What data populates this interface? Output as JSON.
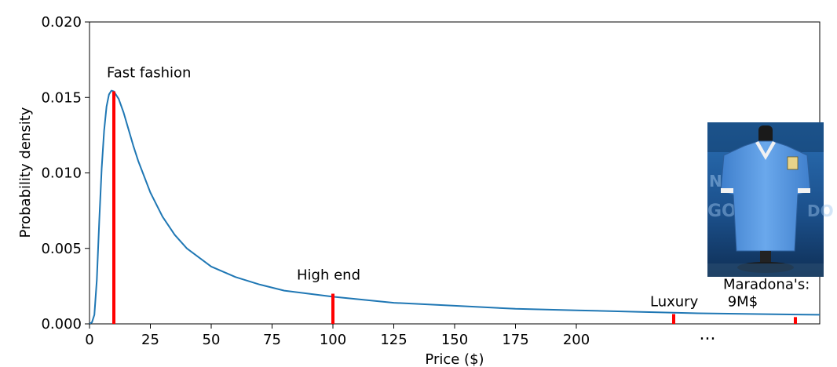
{
  "chart_data": {
    "type": "line",
    "title": "",
    "xlabel": "Price ($)",
    "ylabel": "Probability density",
    "xlim": [
      0,
      300
    ],
    "ylim": [
      0,
      0.02
    ],
    "x_ticks": [
      0,
      25,
      50,
      75,
      100,
      125,
      150,
      175,
      200
    ],
    "x_tick_labels": [
      "0",
      "25",
      "50",
      "75",
      "100",
      "125",
      "150",
      "175",
      "200"
    ],
    "y_ticks": [
      0,
      0.005,
      0.01,
      0.015,
      0.02
    ],
    "y_tick_labels": [
      "0.000",
      "0.005",
      "0.010",
      "0.015",
      "0.020"
    ],
    "grid": false,
    "curve": {
      "x": [
        0,
        1,
        2,
        3,
        4,
        5,
        6,
        7,
        8,
        9,
        10,
        12,
        14,
        16,
        18,
        20,
        25,
        30,
        35,
        40,
        50,
        60,
        70,
        80,
        90,
        100,
        125,
        150,
        175,
        200,
        225,
        250,
        275,
        300
      ],
      "y": [
        0,
        0.0001,
        0.0006,
        0.0029,
        0.0068,
        0.0103,
        0.0128,
        0.0144,
        0.0152,
        0.01545,
        0.0154,
        0.0149,
        0.014,
        0.0129,
        0.0118,
        0.0108,
        0.0087,
        0.0071,
        0.0059,
        0.005,
        0.0038,
        0.0031,
        0.0026,
        0.0022,
        0.002,
        0.0018,
        0.0014,
        0.0012,
        0.001,
        0.0009,
        0.0008,
        0.0007,
        0.00065,
        0.0006
      ],
      "color": "#1f77b4"
    },
    "markers": [
      {
        "label": "Fast fashion",
        "x": 10,
        "y": 0.0154,
        "color": "#ff0000"
      },
      {
        "label": "High end",
        "x": 100,
        "y": 0.002,
        "color": "#ff0000"
      },
      {
        "label": "Luxury",
        "x": 240,
        "y": 0.00065,
        "color": "#ff0000"
      },
      {
        "label": "Maradona's:\n 9M$",
        "x": 290,
        "y": 0.00045,
        "color": "#ff0000"
      }
    ],
    "axis_break_label": "..."
  },
  "inset_image": {
    "icon": "football-jersey-display-icon",
    "colors": {
      "shirt": "#4f8fd8",
      "background": "#1f5f9e",
      "collar": "#f2f2f2"
    }
  }
}
